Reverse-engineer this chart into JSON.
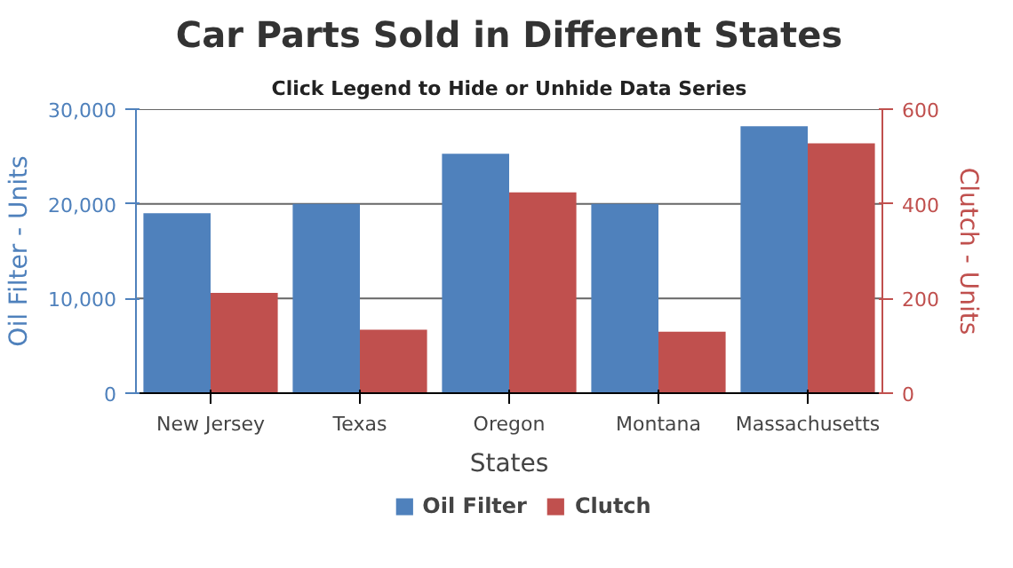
{
  "chart_data": {
    "type": "bar",
    "title": "Car Parts Sold in Different States",
    "subtitle": "Click Legend to Hide or Unhide Data Series",
    "xlabel": "States",
    "ylabel": "Oil Filter - Units",
    "y2label": "Clutch - Units",
    "categories": [
      "New Jersey",
      "Texas",
      "Oregon",
      "Montana",
      "Massachusetts"
    ],
    "series": [
      {
        "name": "Oil Filter",
        "color": "#4f81bc",
        "values": [
          19000,
          20000,
          25300,
          20000,
          28200
        ]
      },
      {
        "name": "Clutch",
        "color": "#c0504e",
        "axis": "y2",
        "values": [
          212,
          134,
          424,
          130,
          528
        ]
      }
    ],
    "ylim": [
      0,
      30000
    ],
    "yticks": [
      {
        "value": 0,
        "label": "0"
      },
      {
        "value": 10000,
        "label": "10,000"
      },
      {
        "value": 20000,
        "label": "20,000"
      },
      {
        "value": 30000,
        "label": "30,000"
      }
    ],
    "y2lim": [
      0,
      600
    ],
    "y2ticks": [
      0,
      200,
      400,
      600
    ],
    "grid": "y",
    "legend": "bottom"
  }
}
